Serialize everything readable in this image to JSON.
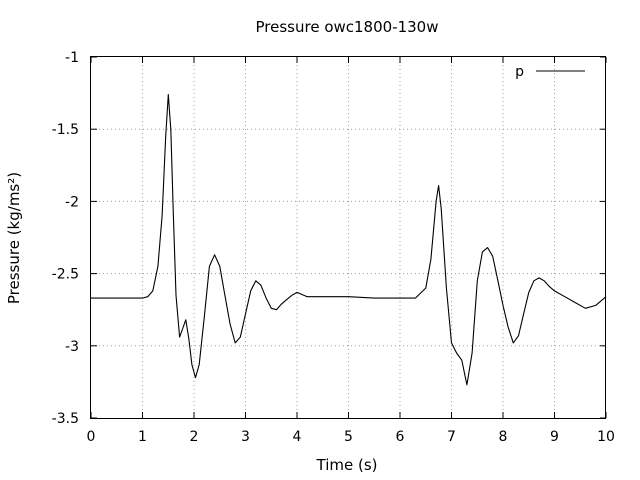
{
  "chart_data": {
    "type": "line",
    "title": "Pressure owc1800-130w",
    "xlabel": "Time (s)",
    "ylabel": "Pressure (kg/ms²)",
    "xlim": [
      0,
      10
    ],
    "ylim": [
      -3.5,
      -1
    ],
    "xticks": [
      "0",
      "1",
      "2",
      "3",
      "4",
      "5",
      "6",
      "7",
      "8",
      "9",
      "10"
    ],
    "yticks": [
      "-1",
      "-1.5",
      "-2",
      "-2.5",
      "-3",
      "-3.5"
    ],
    "grid": true,
    "legend_position": "top-right",
    "series": [
      {
        "name": "p",
        "color": "#000000",
        "x": [
          0,
          0.5,
          1.0,
          1.1,
          1.2,
          1.3,
          1.38,
          1.45,
          1.5,
          1.55,
          1.6,
          1.65,
          1.72,
          1.78,
          1.84,
          1.9,
          1.96,
          2.03,
          2.1,
          2.2,
          2.3,
          2.4,
          2.5,
          2.6,
          2.7,
          2.8,
          2.9,
          3.0,
          3.1,
          3.2,
          3.3,
          3.4,
          3.5,
          3.6,
          3.7,
          3.8,
          3.9,
          4.0,
          4.2,
          4.5,
          5.0,
          5.5,
          6.0,
          6.3,
          6.5,
          6.6,
          6.7,
          6.75,
          6.8,
          6.9,
          7.0,
          7.1,
          7.2,
          7.3,
          7.4,
          7.5,
          7.6,
          7.7,
          7.8,
          7.9,
          8.0,
          8.1,
          8.2,
          8.3,
          8.4,
          8.5,
          8.6,
          8.7,
          8.8,
          8.9,
          9.0,
          9.2,
          9.4,
          9.6,
          9.8,
          10.0
        ],
        "y": [
          -2.67,
          -2.67,
          -2.67,
          -2.66,
          -2.62,
          -2.45,
          -2.1,
          -1.55,
          -1.26,
          -1.5,
          -2.1,
          -2.65,
          -2.94,
          -2.88,
          -2.82,
          -2.95,
          -3.13,
          -3.22,
          -3.13,
          -2.8,
          -2.45,
          -2.37,
          -2.45,
          -2.65,
          -2.85,
          -2.98,
          -2.94,
          -2.78,
          -2.62,
          -2.55,
          -2.58,
          -2.67,
          -2.74,
          -2.75,
          -2.71,
          -2.68,
          -2.65,
          -2.63,
          -2.66,
          -2.66,
          -2.66,
          -2.67,
          -2.67,
          -2.67,
          -2.6,
          -2.4,
          -2.0,
          -1.89,
          -2.05,
          -2.6,
          -2.98,
          -3.05,
          -3.1,
          -3.27,
          -3.05,
          -2.55,
          -2.35,
          -2.32,
          -2.38,
          -2.55,
          -2.72,
          -2.87,
          -2.98,
          -2.93,
          -2.78,
          -2.63,
          -2.55,
          -2.53,
          -2.55,
          -2.59,
          -2.62,
          -2.66,
          -2.7,
          -2.74,
          -2.72,
          -2.66
        ]
      }
    ]
  }
}
